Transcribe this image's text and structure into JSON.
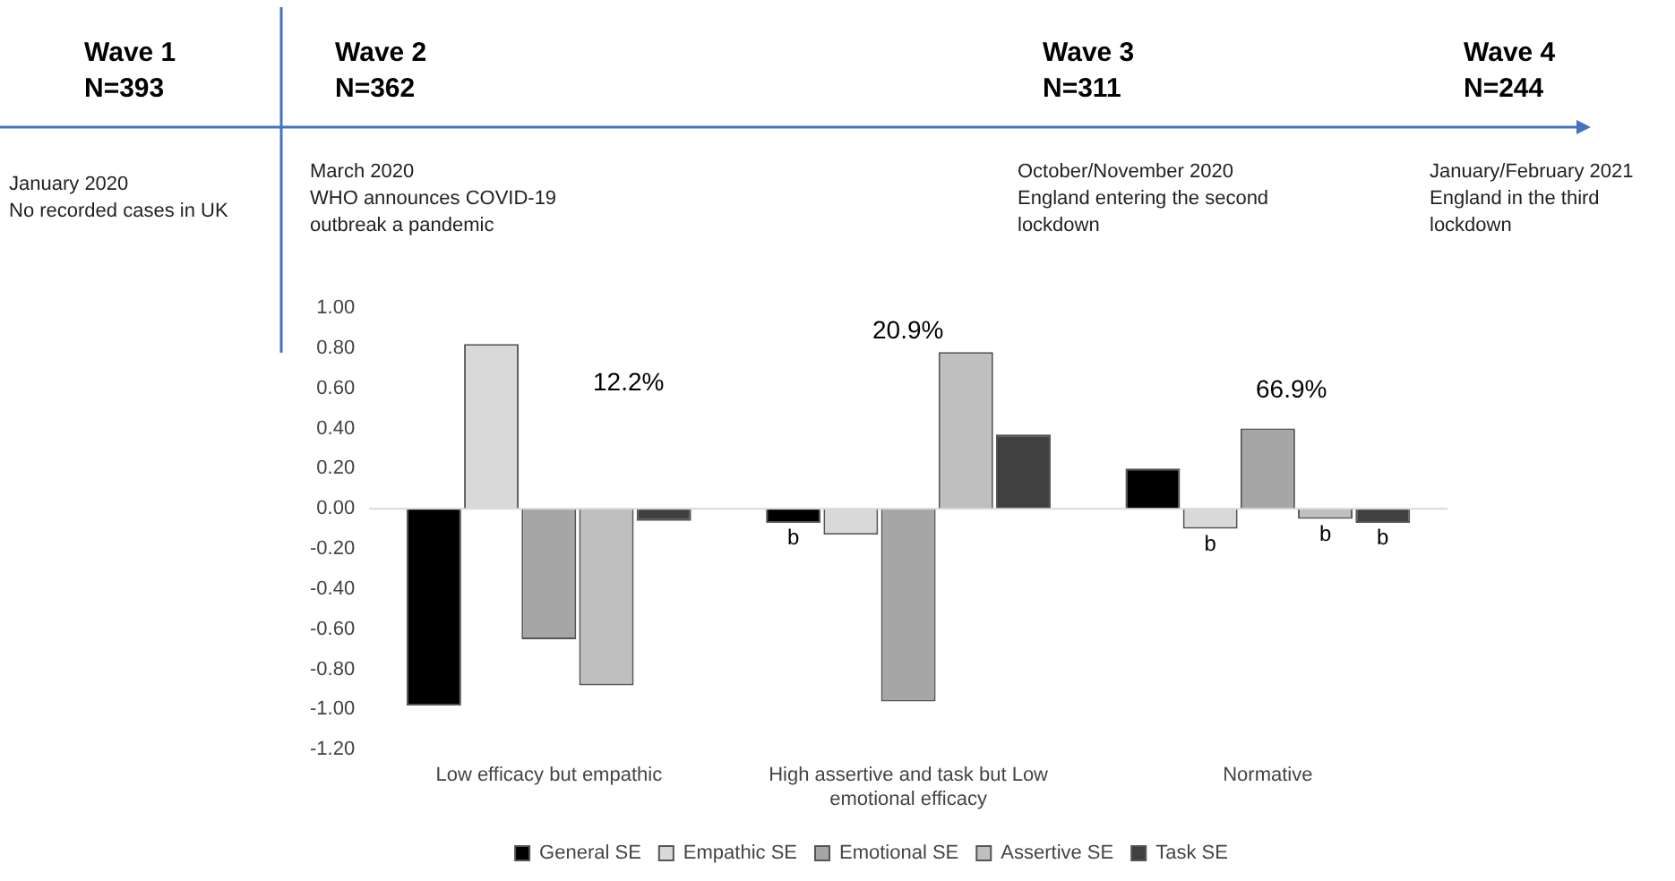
{
  "chart_data": {
    "type": "bar",
    "categories": [
      "Low efficacy but empathic",
      "High assertive and task but Low emotional efficacy",
      "Normative"
    ],
    "series": [
      {
        "name": "General SE",
        "color": "#000000",
        "values": [
          -0.98,
          -0.07,
          0.2
        ],
        "value_labels": [
          null,
          "b",
          null
        ]
      },
      {
        "name": "Empathic SE",
        "color": "#d9d9d9",
        "values": [
          0.82,
          -0.13,
          -0.1
        ],
        "value_labels": [
          null,
          null,
          "b"
        ]
      },
      {
        "name": "Emotional SE",
        "color": "#a6a6a6",
        "values": [
          -0.65,
          -0.96,
          0.4
        ],
        "value_labels": [
          null,
          null,
          null
        ]
      },
      {
        "name": "Assertive SE",
        "color": "#bfbfbf",
        "values": [
          -0.88,
          0.78,
          -0.05
        ],
        "value_labels": [
          null,
          null,
          "b"
        ]
      },
      {
        "name": "Task SE",
        "color": "#404040",
        "values": [
          -0.06,
          0.37,
          -0.07
        ],
        "value_labels": [
          null,
          null,
          "b"
        ]
      }
    ],
    "ylim": [
      -1.2,
      1.0
    ],
    "yticks": [
      {
        "value": -1.2,
        "label": "-1.20"
      },
      {
        "value": -1.0,
        "label": "-1.00"
      },
      {
        "value": -0.8,
        "label": "-0.80"
      },
      {
        "value": -0.6,
        "label": "-0.60"
      },
      {
        "value": -0.4,
        "label": "-0.40"
      },
      {
        "value": -0.2,
        "label": "-0.20"
      },
      {
        "value": 0,
        "label": "0.00"
      },
      {
        "value": 0.2,
        "label": "0.20"
      },
      {
        "value": 0.4,
        "label": "0.40"
      },
      {
        "value": 0.6,
        "label": "0.60"
      },
      {
        "value": 0.8,
        "label": "0.80"
      },
      {
        "value": 1.0,
        "label": "1.00"
      }
    ],
    "legend": "bottom",
    "annotations": [
      "Wave 1\nN=393",
      "Wave 2\nN=362",
      "Wave 3\nN=311",
      "Wave 4\nN=244",
      "January 2020\nNo recorded cases in UK",
      "March 2020\nWHO announces COVID-19\noutbreak a pandemic",
      "October/November 2020\nEngland entering the second\nlockdown",
      "January/February 2021\nEngland in the third\nlockdown",
      "12.2%",
      "20.9%",
      "66.9%"
    ]
  }
}
